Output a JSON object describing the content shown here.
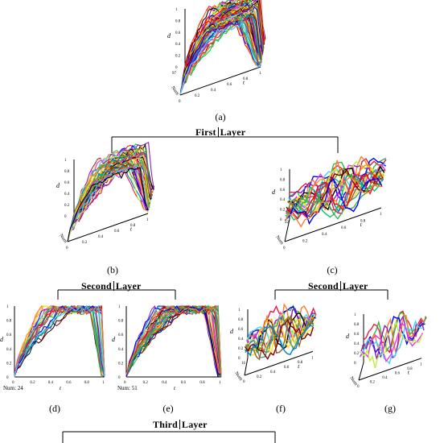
{
  "panel_labels": [
    "(a)",
    "(b)",
    "(c)",
    "(d)",
    "(e)",
    "(f)",
    "(g)"
  ],
  "layers": {
    "first": {
      "word1": "First",
      "word2": "Layer"
    },
    "second_left": {
      "word1": "Second",
      "word2": "Layer"
    },
    "second_right": {
      "word1": "Second",
      "word2": "Layer"
    },
    "third": {
      "word1": "Third",
      "word2": "Layer"
    }
  },
  "axis_text": {
    "d": "d",
    "t": "t",
    "num": "Num",
    "ticks01": [
      "0",
      "0.2",
      "0.4",
      "0.6",
      "0.8",
      "1"
    ]
  },
  "annotations": {
    "panel_a_num": "97",
    "panel_c_num": "22",
    "panel_d_count": "Num: 24",
    "panel_e_count": "Num: 51",
    "panel_f_num": "16"
  },
  "colors": [
    "#e6194b",
    "#3cb44b",
    "#0000ff",
    "#f58231",
    "#911eb4",
    "#42d4f4",
    "#f032e6",
    "#bfef45",
    "#000000",
    "#ff9900",
    "#808000",
    "#ffe119",
    "#469990",
    "#9a6324",
    "#800000",
    "#0082c8",
    "#ff0000",
    "#00cc66"
  ]
}
